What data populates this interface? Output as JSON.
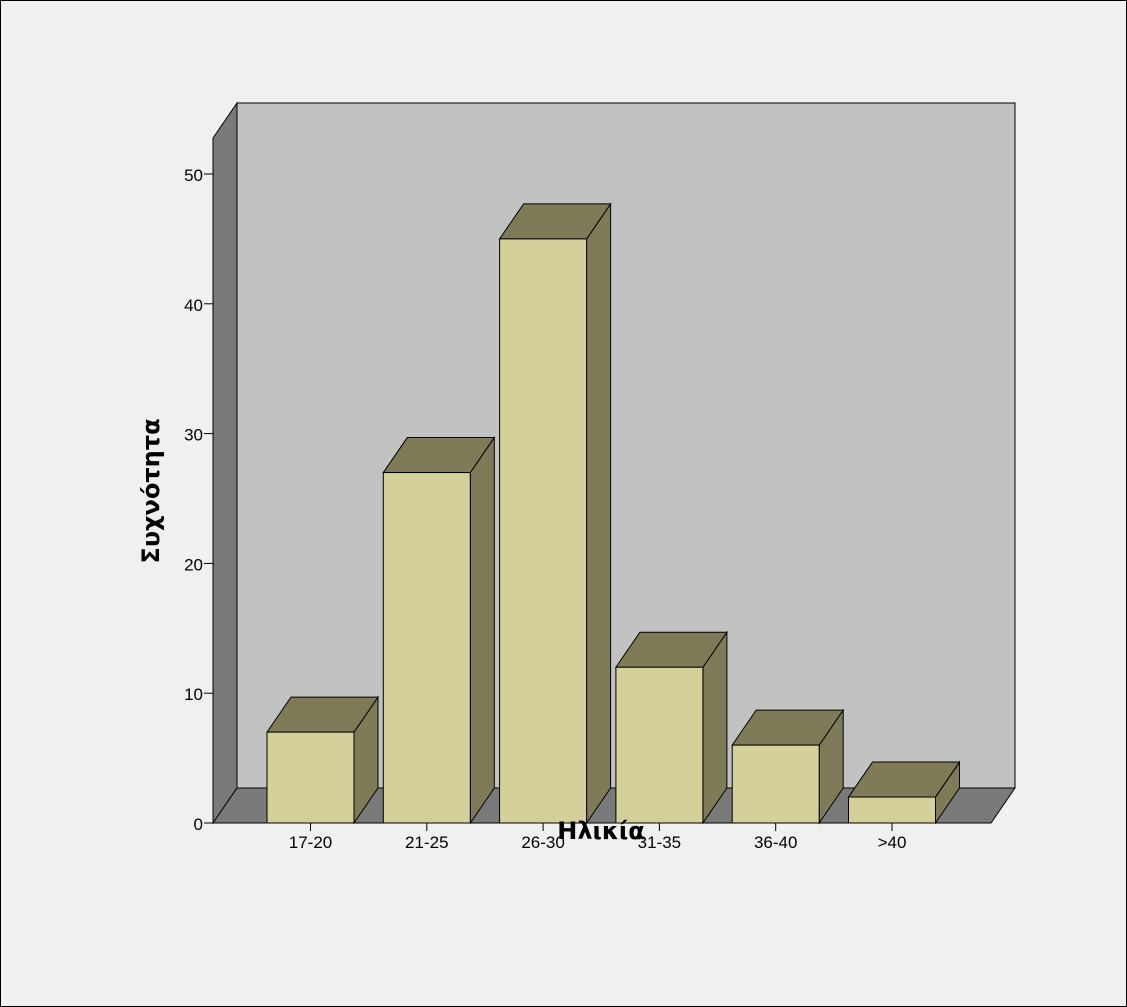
{
  "chart_data": {
    "type": "bar",
    "style": "3d",
    "categories": [
      "17-20",
      "21-25",
      "26-30",
      "31-35",
      "36-40",
      ">40"
    ],
    "values": [
      7,
      27,
      45,
      12,
      6,
      2
    ],
    "xlabel": "Ηλικία",
    "ylabel": "Συχνότητα",
    "ylim": [
      0,
      50
    ],
    "yticks": [
      0,
      10,
      20,
      30,
      40,
      50
    ],
    "grid": false,
    "legend": "none",
    "colors": {
      "bar_front": "#d5d09a",
      "bar_side": "#7f7b58",
      "back_wall": "#c2c2c2",
      "side_wall": "#7a7a7a",
      "floor": "#7a7a7a",
      "background": "#f0f0f0"
    }
  }
}
